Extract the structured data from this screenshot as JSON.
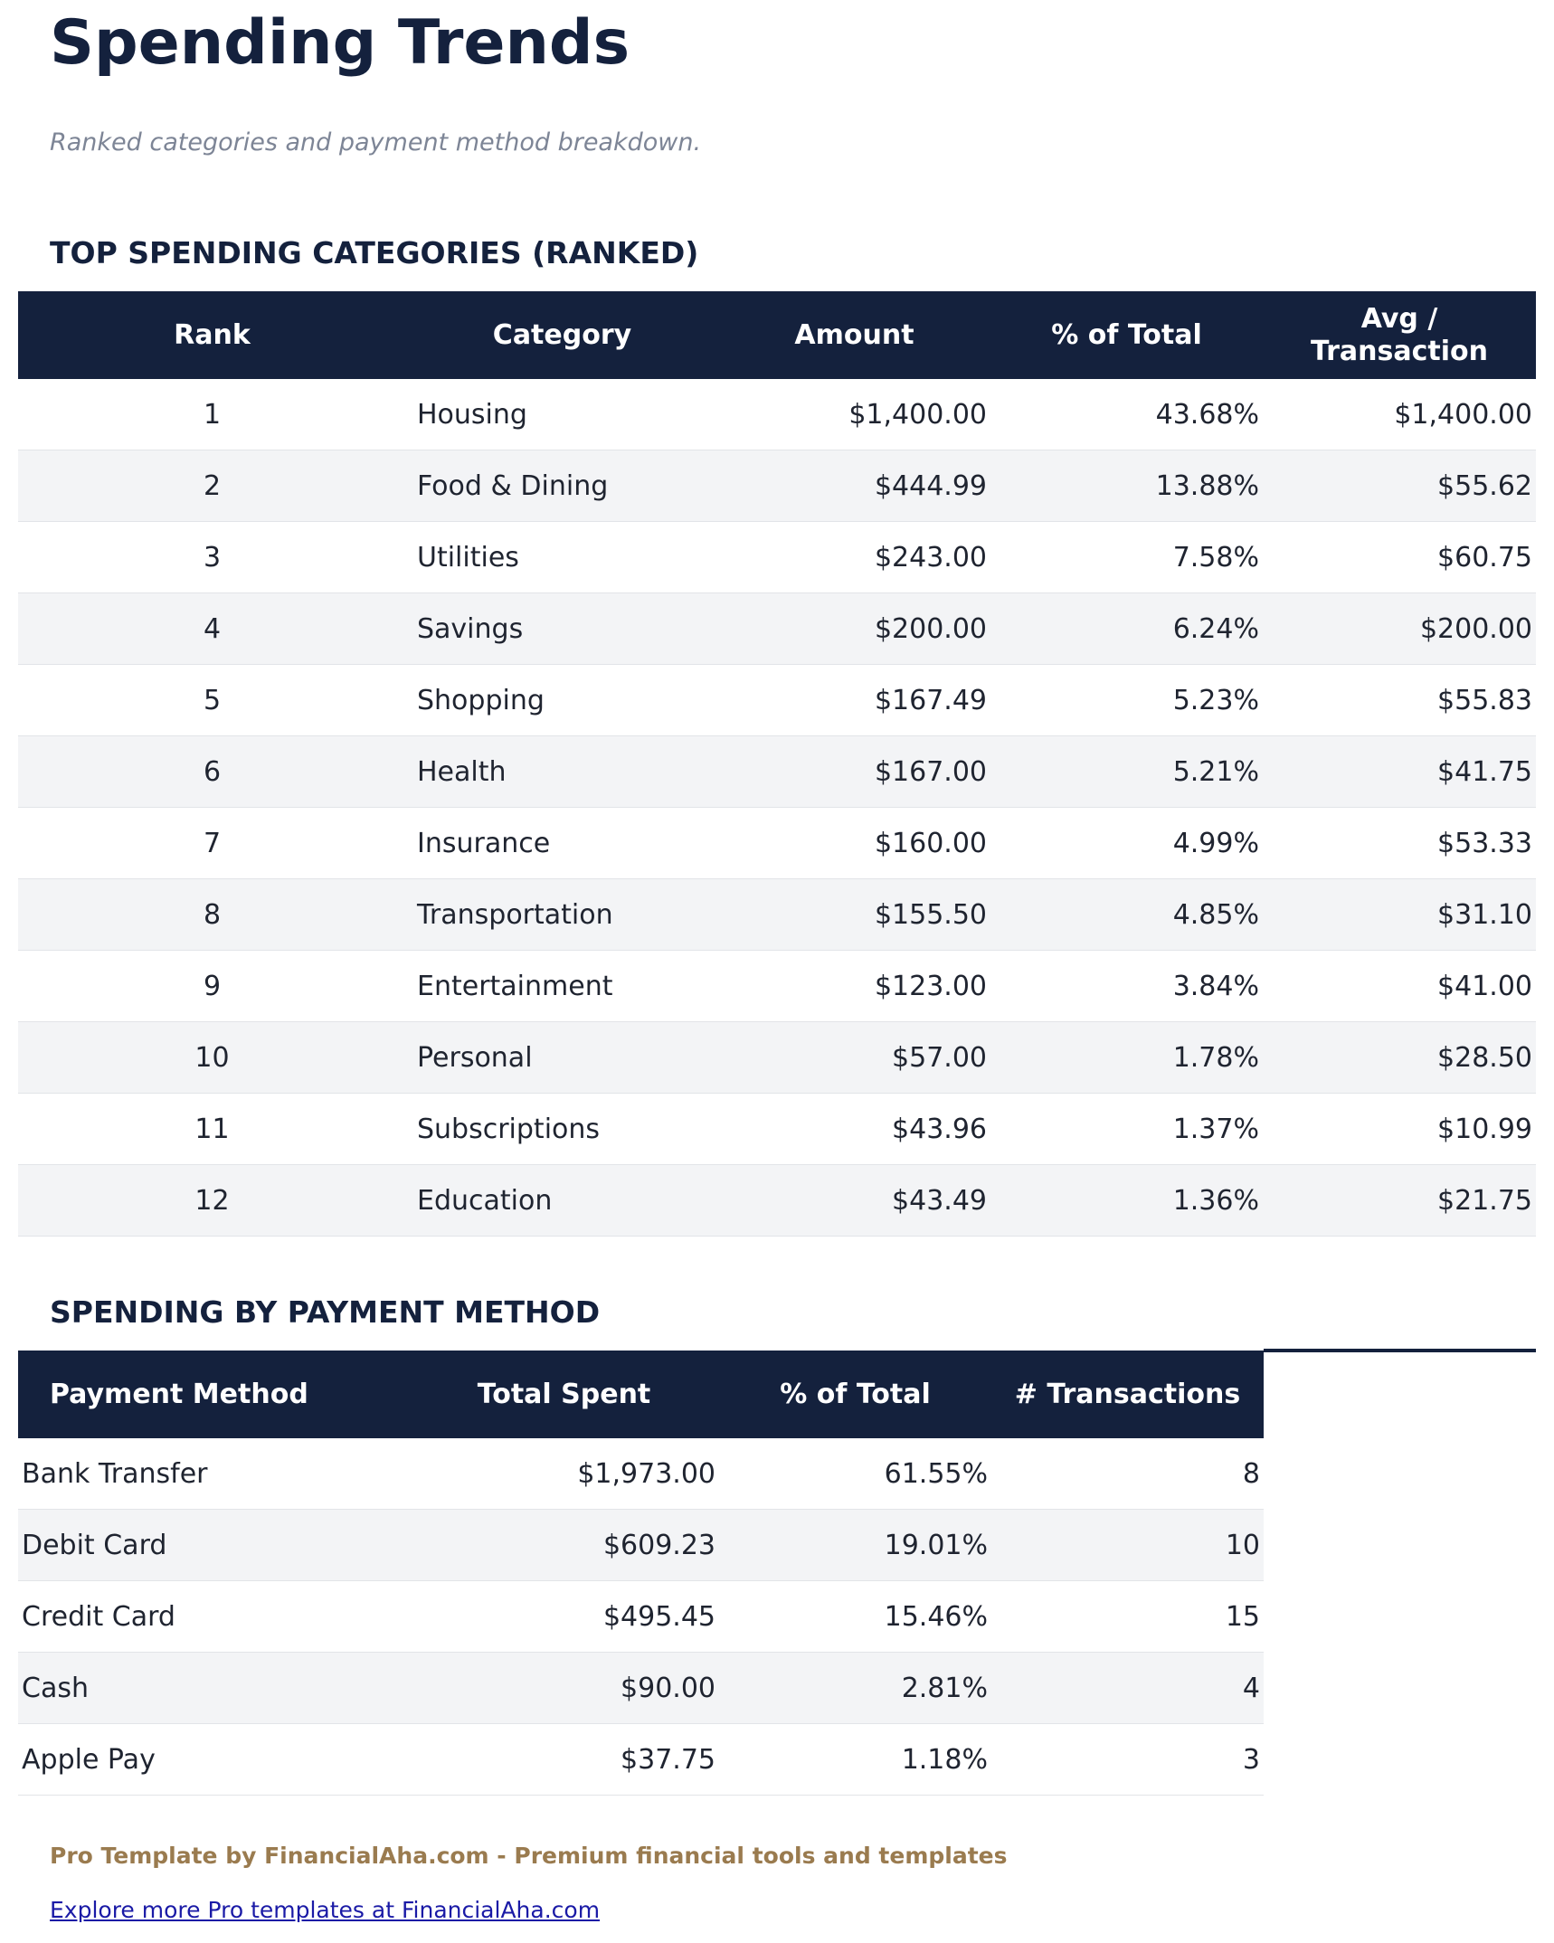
{
  "header": {
    "title": "Spending Trends",
    "subtitle": "Ranked categories and payment method breakdown."
  },
  "tables": [
    {
      "heading": "TOP SPENDING CATEGORIES (RANKED)",
      "columns": [
        "Rank",
        "Category",
        "Amount",
        "% of Total",
        "Avg / Transaction"
      ],
      "rows": [
        [
          "1",
          "Housing",
          "$1,400.00",
          "43.68%",
          "$1,400.00"
        ],
        [
          "2",
          "Food & Dining",
          "$444.99",
          "13.88%",
          "$55.62"
        ],
        [
          "3",
          "Utilities",
          "$243.00",
          "7.58%",
          "$60.75"
        ],
        [
          "4",
          "Savings",
          "$200.00",
          "6.24%",
          "$200.00"
        ],
        [
          "5",
          "Shopping",
          "$167.49",
          "5.23%",
          "$55.83"
        ],
        [
          "6",
          "Health",
          "$167.00",
          "5.21%",
          "$41.75"
        ],
        [
          "7",
          "Insurance",
          "$160.00",
          "4.99%",
          "$53.33"
        ],
        [
          "8",
          "Transportation",
          "$155.50",
          "4.85%",
          "$31.10"
        ],
        [
          "9",
          "Entertainment",
          "$123.00",
          "3.84%",
          "$41.00"
        ],
        [
          "10",
          "Personal",
          "$57.00",
          "1.78%",
          "$28.50"
        ],
        [
          "11",
          "Subscriptions",
          "$43.96",
          "1.37%",
          "$10.99"
        ],
        [
          "12",
          "Education",
          "$43.49",
          "1.36%",
          "$21.75"
        ]
      ]
    },
    {
      "heading": "SPENDING BY PAYMENT METHOD",
      "columns": [
        "Payment Method",
        "Total Spent",
        "% of Total",
        "# Transactions"
      ],
      "rows": [
        [
          "Bank Transfer",
          "$1,973.00",
          "61.55%",
          "8"
        ],
        [
          "Debit Card",
          "$609.23",
          "19.01%",
          "10"
        ],
        [
          "Credit Card",
          "$495.45",
          "15.46%",
          "15"
        ],
        [
          "Cash",
          "$90.00",
          "2.81%",
          "4"
        ],
        [
          "Apple Pay",
          "$37.75",
          "1.18%",
          "3"
        ]
      ]
    }
  ],
  "footer": {
    "credit": "Pro Template by FinancialAha.com - Premium financial tools and templates",
    "link": "Explore more Pro templates at FinancialAha.com"
  }
}
